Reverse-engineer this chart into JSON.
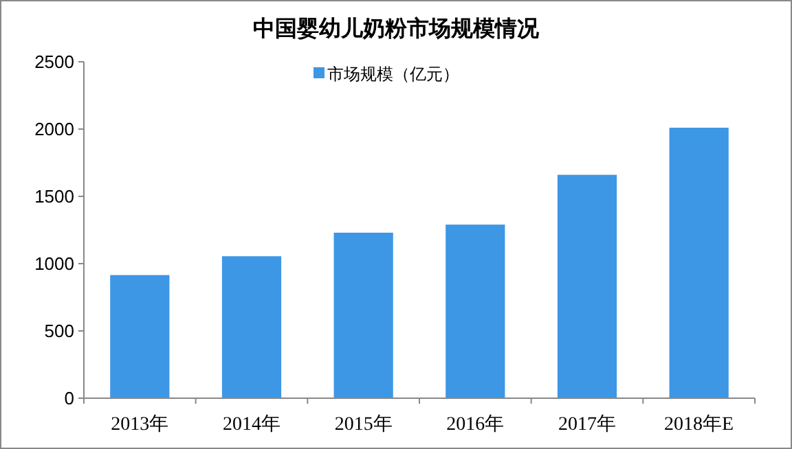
{
  "chart_data": {
    "type": "bar",
    "title": "中国婴幼儿奶粉市场规模情况",
    "categories": [
      "2013年",
      "2014年",
      "2015年",
      "2016年",
      "2017年",
      "2018年E"
    ],
    "series": [
      {
        "name": "市场规模（亿元）",
        "color": "#3d97e5",
        "values": [
          915,
          1055,
          1230,
          1290,
          1660,
          2010
        ]
      }
    ],
    "ylim": [
      0,
      2500
    ],
    "yticks": [
      0,
      500,
      1000,
      1500,
      2000,
      2500
    ],
    "grid": false,
    "legend": "top"
  }
}
